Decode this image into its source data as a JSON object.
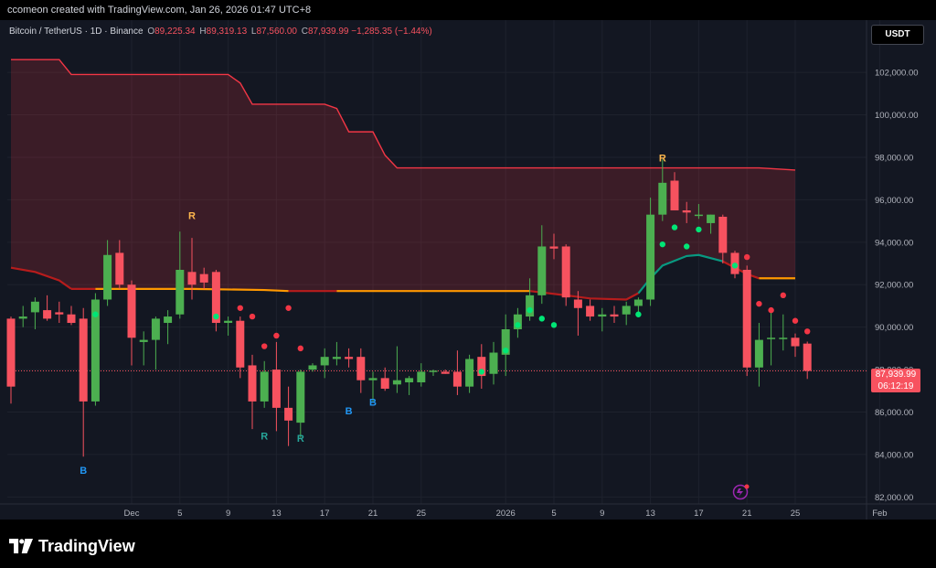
{
  "header": {
    "credit": "ccomeon created with TradingView.com, Jan 26, 2026 01:47 UTC+8"
  },
  "symbol": {
    "name": "Bitcoin / TetherUS · 1D · Binance",
    "open_label": "O",
    "open": "89,225.34",
    "high_label": "H",
    "high": "89,319.13",
    "low_label": "L",
    "low": "87,560.00",
    "close_label": "C",
    "close": "87,939.99",
    "change": "−1,285.35 (−1.44%)"
  },
  "currency_button": "USDT",
  "price_badge": {
    "price": "87,939.99",
    "countdown": "06:12:19"
  },
  "footer": {
    "brand": "TradingView"
  },
  "colors": {
    "up": "#22ab94",
    "down": "#f7525f",
    "up_green": "#4caf50",
    "stop_line": "#f23645",
    "ma_orange": "#ff9800",
    "ma_red": "#b71c1c",
    "ma_green": "#089981",
    "dot_green": "#00e676",
    "dot_red": "#f23645",
    "label_orange": "#ffb74d",
    "label_blue": "#2196f3",
    "label_teal": "#26a69a"
  },
  "chart_data": {
    "type": "candlestick",
    "ylim": [
      81800,
      103600
    ],
    "y_ticks": [
      "82,000.00",
      "84,000.00",
      "86,000.00",
      "88,000.00",
      "90,000.00",
      "92,000.00",
      "94,000.00",
      "96,000.00",
      "98,000.00",
      "100,000.00",
      "102,000.00"
    ],
    "y_tick_values": [
      82000,
      84000,
      86000,
      88000,
      90000,
      92000,
      94000,
      96000,
      98000,
      100000,
      102000
    ],
    "x_start_date": "2025-11-21",
    "x_ticks": [
      {
        "label": "Dec",
        "index": 10
      },
      {
        "label": "5",
        "index": 14
      },
      {
        "label": "9",
        "index": 18
      },
      {
        "label": "13",
        "index": 22
      },
      {
        "label": "17",
        "index": 26
      },
      {
        "label": "21",
        "index": 30
      },
      {
        "label": "25",
        "index": 34
      },
      {
        "label": "2026",
        "index": 41
      },
      {
        "label": "5",
        "index": 45
      },
      {
        "label": "9",
        "index": 49
      },
      {
        "label": "13",
        "index": 53
      },
      {
        "label": "17",
        "index": 57
      },
      {
        "label": "21",
        "index": 61
      },
      {
        "label": "25",
        "index": 65
      },
      {
        "label": "Feb",
        "index": 72
      }
    ],
    "candles": [
      {
        "o": 90400,
        "h": 90500,
        "l": 86400,
        "c": 87200
      },
      {
        "o": 90400,
        "h": 91000,
        "l": 90000,
        "c": 90500
      },
      {
        "o": 90700,
        "h": 91400,
        "l": 89900,
        "c": 91200
      },
      {
        "o": 90800,
        "h": 91500,
        "l": 90300,
        "c": 90400
      },
      {
        "o": 90700,
        "h": 91200,
        "l": 90200,
        "c": 90600
      },
      {
        "o": 90600,
        "h": 91000,
        "l": 90100,
        "c": 90200
      },
      {
        "o": 90400,
        "h": 90900,
        "l": 83900,
        "c": 86500
      },
      {
        "o": 86500,
        "h": 91600,
        "l": 86300,
        "c": 91300
      },
      {
        "o": 91300,
        "h": 94100,
        "l": 91000,
        "c": 93400
      },
      {
        "o": 93500,
        "h": 94100,
        "l": 91800,
        "c": 92000
      },
      {
        "o": 92000,
        "h": 92200,
        "l": 88200,
        "c": 89500
      },
      {
        "o": 89300,
        "h": 89800,
        "l": 88200,
        "c": 89400
      },
      {
        "o": 89400,
        "h": 90500,
        "l": 88000,
        "c": 90400
      },
      {
        "o": 90200,
        "h": 90800,
        "l": 89200,
        "c": 90500
      },
      {
        "o": 90600,
        "h": 94500,
        "l": 90400,
        "c": 92700
      },
      {
        "o": 92600,
        "h": 94200,
        "l": 91300,
        "c": 92000
      },
      {
        "o": 92500,
        "h": 92800,
        "l": 91800,
        "c": 92100
      },
      {
        "o": 92600,
        "h": 92700,
        "l": 89800,
        "c": 90200
      },
      {
        "o": 90200,
        "h": 90500,
        "l": 89600,
        "c": 90300
      },
      {
        "o": 90300,
        "h": 90500,
        "l": 87600,
        "c": 88100
      },
      {
        "o": 88200,
        "h": 88700,
        "l": 85200,
        "c": 86500
      },
      {
        "o": 86500,
        "h": 88400,
        "l": 86200,
        "c": 87900
      },
      {
        "o": 88000,
        "h": 89300,
        "l": 85100,
        "c": 86200
      },
      {
        "o": 86200,
        "h": 87200,
        "l": 84400,
        "c": 85600
      },
      {
        "o": 85500,
        "h": 88000,
        "l": 84800,
        "c": 87900
      },
      {
        "o": 88000,
        "h": 88300,
        "l": 87900,
        "c": 88200
      },
      {
        "o": 88200,
        "h": 89000,
        "l": 87600,
        "c": 88600
      },
      {
        "o": 88500,
        "h": 89300,
        "l": 88200,
        "c": 88600
      },
      {
        "o": 88600,
        "h": 89000,
        "l": 88100,
        "c": 88500
      },
      {
        "o": 88600,
        "h": 89000,
        "l": 86900,
        "c": 87500
      },
      {
        "o": 87500,
        "h": 87900,
        "l": 86500,
        "c": 87600
      },
      {
        "o": 87600,
        "h": 88100,
        "l": 87000,
        "c": 87100
      },
      {
        "o": 87300,
        "h": 89100,
        "l": 86900,
        "c": 87500
      },
      {
        "o": 87400,
        "h": 87700,
        "l": 86800,
        "c": 87600
      },
      {
        "o": 87400,
        "h": 88300,
        "l": 87200,
        "c": 87900
      },
      {
        "o": 87900,
        "h": 88000,
        "l": 87700,
        "c": 87950
      },
      {
        "o": 87900,
        "h": 88000,
        "l": 87800,
        "c": 87800
      },
      {
        "o": 87900,
        "h": 88900,
        "l": 86800,
        "c": 87200
      },
      {
        "o": 87200,
        "h": 88700,
        "l": 86900,
        "c": 88500
      },
      {
        "o": 88600,
        "h": 89200,
        "l": 87100,
        "c": 87700
      },
      {
        "o": 87800,
        "h": 89300,
        "l": 87300,
        "c": 88800
      },
      {
        "o": 88700,
        "h": 90600,
        "l": 87700,
        "c": 89900
      },
      {
        "o": 89900,
        "h": 90900,
        "l": 89500,
        "c": 90600
      },
      {
        "o": 90500,
        "h": 92300,
        "l": 90300,
        "c": 91500
      },
      {
        "o": 91500,
        "h": 94800,
        "l": 91100,
        "c": 93800
      },
      {
        "o": 93800,
        "h": 94400,
        "l": 93200,
        "c": 93700
      },
      {
        "o": 93800,
        "h": 93900,
        "l": 91000,
        "c": 91400
      },
      {
        "o": 91300,
        "h": 91700,
        "l": 89600,
        "c": 90900
      },
      {
        "o": 91000,
        "h": 91300,
        "l": 90300,
        "c": 90500
      },
      {
        "o": 90500,
        "h": 90900,
        "l": 89800,
        "c": 90600
      },
      {
        "o": 90600,
        "h": 91000,
        "l": 90200,
        "c": 90500
      },
      {
        "o": 90600,
        "h": 91200,
        "l": 90100,
        "c": 91000
      },
      {
        "o": 91000,
        "h": 91400,
        "l": 90500,
        "c": 91300
      },
      {
        "o": 91300,
        "h": 96100,
        "l": 91000,
        "c": 95300
      },
      {
        "o": 95300,
        "h": 97900,
        "l": 95000,
        "c": 96800
      },
      {
        "o": 96900,
        "h": 97300,
        "l": 95500,
        "c": 95500
      },
      {
        "o": 95500,
        "h": 95900,
        "l": 94900,
        "c": 95400
      },
      {
        "o": 95300,
        "h": 95800,
        "l": 95100,
        "c": 95300
      },
      {
        "o": 94900,
        "h": 95300,
        "l": 94400,
        "c": 95300
      },
      {
        "o": 95200,
        "h": 95300,
        "l": 93000,
        "c": 93500
      },
      {
        "o": 93500,
        "h": 93600,
        "l": 92300,
        "c": 92500
      },
      {
        "o": 92700,
        "h": 92900,
        "l": 87700,
        "c": 88100
      },
      {
        "o": 88100,
        "h": 90200,
        "l": 87200,
        "c": 89400
      },
      {
        "o": 89500,
        "h": 90700,
        "l": 88200,
        "c": 89500
      },
      {
        "o": 89500,
        "h": 90600,
        "l": 88900,
        "c": 89500
      },
      {
        "o": 89500,
        "h": 89700,
        "l": 88600,
        "c": 89100
      },
      {
        "o": 89225,
        "h": 89319,
        "l": 87560,
        "c": 87940
      }
    ],
    "stop_line": [
      {
        "i": 0,
        "v": 102600
      },
      {
        "i": 4,
        "v": 102600
      },
      {
        "i": 5,
        "v": 101900
      },
      {
        "i": 18,
        "v": 101900
      },
      {
        "i": 19,
        "v": 101500
      },
      {
        "i": 20,
        "v": 100500
      },
      {
        "i": 26,
        "v": 100500
      },
      {
        "i": 27,
        "v": 100300
      },
      {
        "i": 28,
        "v": 99200
      },
      {
        "i": 30,
        "v": 99200
      },
      {
        "i": 31,
        "v": 98100
      },
      {
        "i": 32,
        "v": 97500
      },
      {
        "i": 60,
        "v": 97500
      },
      {
        "i": 62,
        "v": 97500
      },
      {
        "i": 65,
        "v": 97400
      }
    ],
    "ma_line": [
      {
        "i": 0,
        "v": 92800
      },
      {
        "i": 2,
        "v": 92600
      },
      {
        "i": 4,
        "v": 92200
      },
      {
        "i": 5,
        "v": 91800
      },
      {
        "i": 7,
        "v": 91800
      },
      {
        "i": 15,
        "v": 91800
      },
      {
        "i": 21,
        "v": 91750
      },
      {
        "i": 23,
        "v": 91700
      },
      {
        "i": 27,
        "v": 91700
      },
      {
        "i": 43,
        "v": 91700
      },
      {
        "i": 46,
        "v": 91500
      },
      {
        "i": 48,
        "v": 91350
      },
      {
        "i": 51,
        "v": 91300
      },
      {
        "i": 52,
        "v": 91600
      },
      {
        "i": 53,
        "v": 92300
      },
      {
        "i": 54,
        "v": 92900
      },
      {
        "i": 56,
        "v": 93350
      },
      {
        "i": 57,
        "v": 93400
      },
      {
        "i": 59,
        "v": 93100
      },
      {
        "i": 61,
        "v": 92500
      },
      {
        "i": 62,
        "v": 92300
      },
      {
        "i": 65,
        "v": 92300
      }
    ],
    "ma_segments": [
      {
        "from": 0,
        "to": 5,
        "color": "ma_red"
      },
      {
        "from": 5,
        "to": 7,
        "color": "ma_red"
      },
      {
        "from": 7,
        "to": 23,
        "color": "ma_orange"
      },
      {
        "from": 23,
        "to": 27,
        "color": "ma_red"
      },
      {
        "from": 27,
        "to": 43,
        "color": "ma_orange"
      },
      {
        "from": 43,
        "to": 52,
        "color": "ma_red"
      },
      {
        "from": 52,
        "to": 59,
        "color": "ma_green"
      },
      {
        "from": 59,
        "to": 62,
        "color": "ma_red"
      },
      {
        "from": 62,
        "to": 65,
        "color": "ma_orange"
      }
    ],
    "dots": [
      {
        "i": 7,
        "v": 90600,
        "c": "dot_green"
      },
      {
        "i": 17,
        "v": 90500,
        "c": "dot_green"
      },
      {
        "i": 19,
        "v": 90900,
        "c": "dot_red"
      },
      {
        "i": 20,
        "v": 90500,
        "c": "dot_red"
      },
      {
        "i": 21,
        "v": 89100,
        "c": "dot_red"
      },
      {
        "i": 22,
        "v": 89600,
        "c": "dot_red"
      },
      {
        "i": 23,
        "v": 90900,
        "c": "dot_red"
      },
      {
        "i": 24,
        "v": 89000,
        "c": "dot_red"
      },
      {
        "i": 41,
        "v": 88900,
        "c": "dot_green"
      },
      {
        "i": 39,
        "v": 87900,
        "c": "dot_green"
      },
      {
        "i": 42,
        "v": 90100,
        "c": "dot_green"
      },
      {
        "i": 43,
        "v": 90800,
        "c": "dot_green"
      },
      {
        "i": 44,
        "v": 90400,
        "c": "dot_green"
      },
      {
        "i": 45,
        "v": 90100,
        "c": "dot_green"
      },
      {
        "i": 52,
        "v": 90600,
        "c": "dot_green"
      },
      {
        "i": 54,
        "v": 93900,
        "c": "dot_green"
      },
      {
        "i": 55,
        "v": 94700,
        "c": "dot_green"
      },
      {
        "i": 56,
        "v": 93800,
        "c": "dot_green"
      },
      {
        "i": 57,
        "v": 94600,
        "c": "dot_green"
      },
      {
        "i": 60,
        "v": 92900,
        "c": "dot_green"
      },
      {
        "i": 61,
        "v": 93300,
        "c": "dot_red"
      },
      {
        "i": 62,
        "v": 91100,
        "c": "dot_red"
      },
      {
        "i": 63,
        "v": 90800,
        "c": "dot_red"
      },
      {
        "i": 64,
        "v": 91500,
        "c": "dot_red"
      },
      {
        "i": 65,
        "v": 90300,
        "c": "dot_red"
      },
      {
        "i": 66,
        "v": 89800,
        "c": "dot_red"
      }
    ],
    "signal_labels": [
      {
        "text": "R",
        "i": 15,
        "v": 95100,
        "c": "label_orange"
      },
      {
        "text": "R",
        "i": 54,
        "v": 97800,
        "c": "label_orange"
      },
      {
        "text": "B",
        "i": 6,
        "v": 83100,
        "c": "label_blue"
      },
      {
        "text": "B",
        "i": 28,
        "v": 85900,
        "c": "label_blue"
      },
      {
        "text": "B",
        "i": 30,
        "v": 86300,
        "c": "label_blue"
      },
      {
        "text": "R",
        "i": 21,
        "v": 84700,
        "c": "label_teal"
      },
      {
        "text": "R",
        "i": 24,
        "v": 84600,
        "c": "label_teal"
      }
    ],
    "last_price": 87940
  }
}
